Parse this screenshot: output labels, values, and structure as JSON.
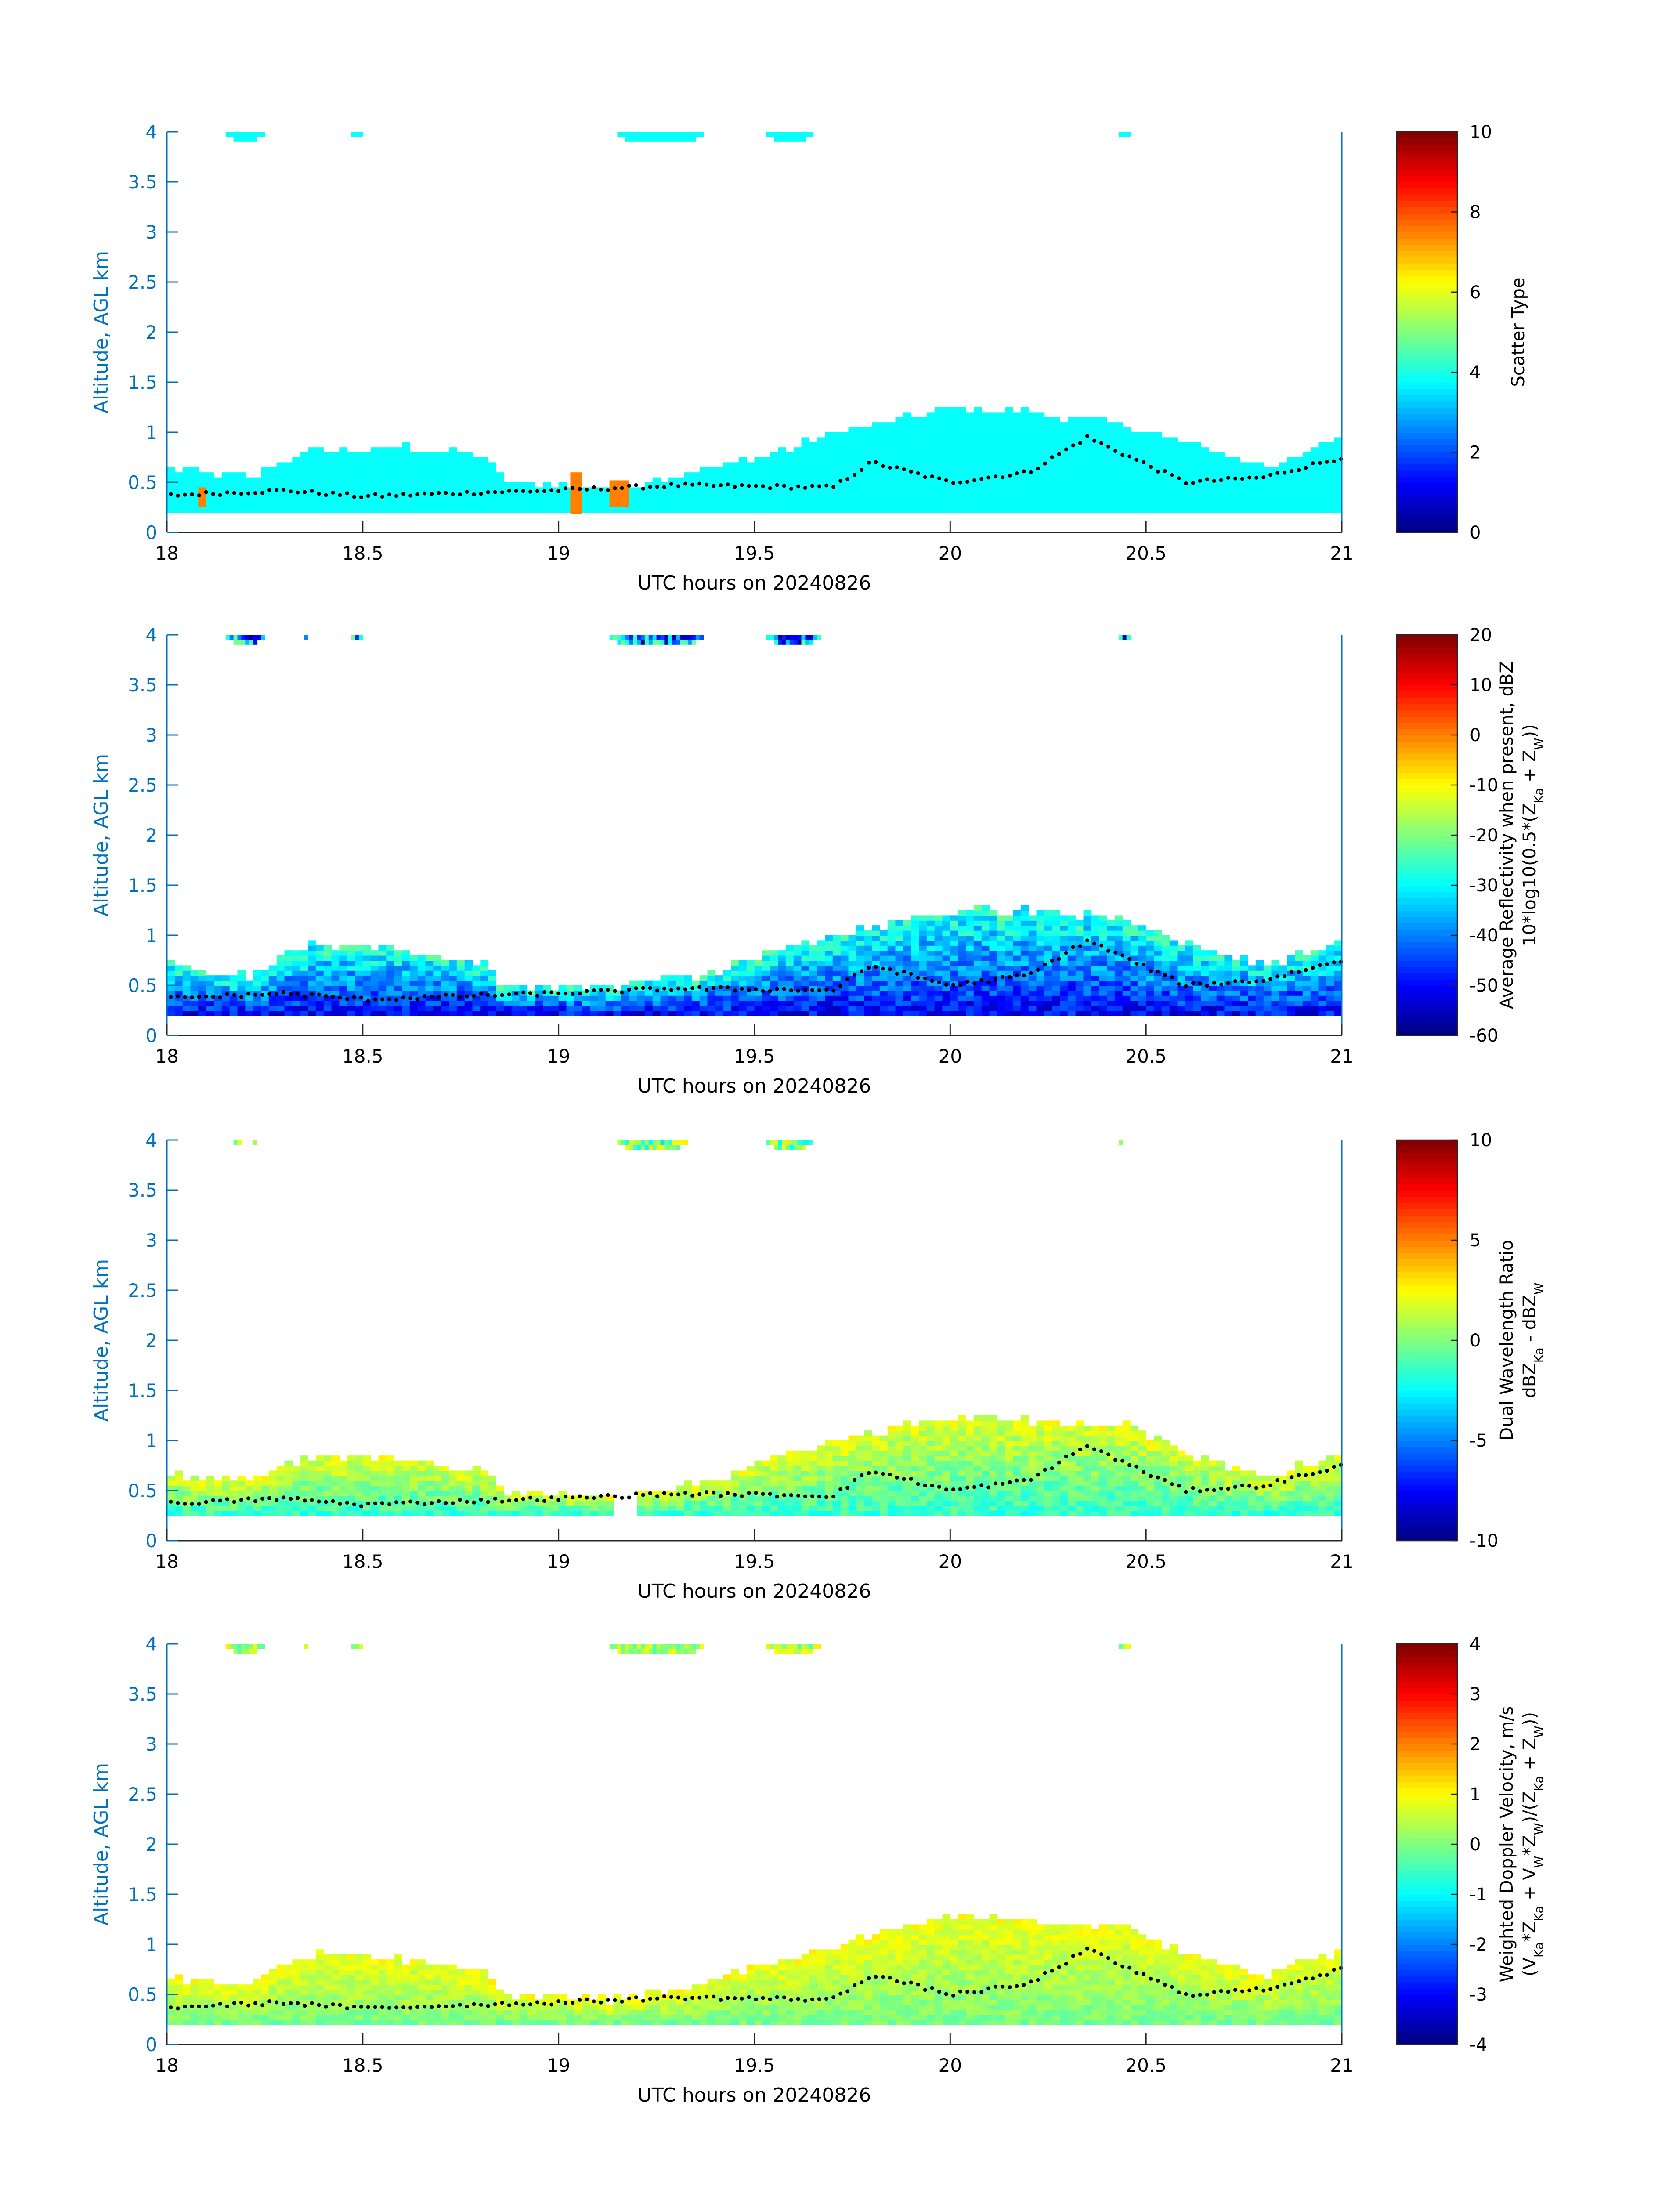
{
  "figure": {
    "background": "#ffffff",
    "axis_color": "#0072bd",
    "tick_text_color": "#000000"
  },
  "chart_data": [
    {
      "type": "heatmap",
      "title": "",
      "xlabel": "UTC hours on 20240826",
      "ylabel": "Altitude, AGL km",
      "xlim": [
        18,
        21
      ],
      "ylim": [
        0,
        4
      ],
      "xticks": [
        "18",
        "18.5",
        "19",
        "19.5",
        "20",
        "20.5",
        "21"
      ],
      "yticks": [
        "0",
        "0.5",
        "1",
        "1.5",
        "2",
        "2.5",
        "3",
        "3.5",
        "4"
      ],
      "colorbar": {
        "label_lines": [
          "Scatter Type"
        ],
        "range": [
          0,
          10
        ],
        "ticks": [
          "0",
          "2",
          "4",
          "6",
          "8",
          "10"
        ]
      },
      "low_cloud_top_km": [
        [
          18.0,
          0.65
        ],
        [
          18.2,
          0.55
        ],
        [
          18.35,
          0.8
        ],
        [
          18.6,
          0.85
        ],
        [
          18.8,
          0.75
        ],
        [
          18.85,
          0.5
        ],
        [
          19.15,
          0.45
        ],
        [
          19.4,
          0.65
        ],
        [
          19.55,
          0.8
        ],
        [
          19.7,
          1.0
        ],
        [
          20.0,
          1.25
        ],
        [
          20.2,
          1.2
        ],
        [
          20.45,
          1.05
        ],
        [
          20.6,
          0.9
        ],
        [
          20.8,
          0.65
        ],
        [
          21.0,
          0.95
        ]
      ],
      "base_km": 0.2,
      "upper_cloud_segments_h": [
        [
          18.15,
          18.25
        ],
        [
          18.47,
          18.5
        ],
        [
          19.15,
          19.37
        ],
        [
          19.53,
          19.65
        ],
        [
          20.43,
          20.46
        ]
      ],
      "dominant_value": 3.8,
      "patches": [
        {
          "x": [
            18.08,
            18.1
          ],
          "y": [
            0.25,
            0.45
          ],
          "value": 7.5
        },
        {
          "x": [
            19.03,
            19.06
          ],
          "y": [
            0.18,
            0.6
          ],
          "value": 7.5
        },
        {
          "x": [
            19.13,
            19.18
          ],
          "y": [
            0.25,
            0.52
          ],
          "value": 7.5
        }
      ],
      "dots_km": [
        [
          18.0,
          0.37
        ],
        [
          18.3,
          0.42
        ],
        [
          18.5,
          0.36
        ],
        [
          18.8,
          0.4
        ],
        [
          19.0,
          0.42
        ],
        [
          19.3,
          0.47
        ],
        [
          19.5,
          0.46
        ],
        [
          19.7,
          0.45
        ],
        [
          19.8,
          0.7
        ],
        [
          20.0,
          0.5
        ],
        [
          20.2,
          0.6
        ],
        [
          20.35,
          0.95
        ],
        [
          20.6,
          0.5
        ],
        [
          20.8,
          0.55
        ],
        [
          21.0,
          0.75
        ]
      ],
      "colormap": "jet"
    },
    {
      "type": "heatmap",
      "title": "",
      "xlabel": "UTC hours on 20240826",
      "ylabel": "Altitude, AGL km",
      "xlim": [
        18,
        21
      ],
      "ylim": [
        0,
        4
      ],
      "xticks": [
        "18",
        "18.5",
        "19",
        "19.5",
        "20",
        "20.5",
        "21"
      ],
      "yticks": [
        "0",
        "0.5",
        "1",
        "1.5",
        "2",
        "2.5",
        "3",
        "3.5",
        "4"
      ],
      "colorbar": {
        "label_lines": [
          "Average Reflectivity when present, dBZ",
          "10*log10(0.5*(Z_Ka + Z_W))"
        ],
        "range": [
          -60,
          20
        ],
        "ticks": [
          "-60",
          "-50",
          "-40",
          "-30",
          "-20",
          "-10",
          "0",
          "10",
          "20"
        ]
      },
      "low_cloud_top_km": [
        [
          18.0,
          0.7
        ],
        [
          18.2,
          0.6
        ],
        [
          18.35,
          0.9
        ],
        [
          18.6,
          0.85
        ],
        [
          18.8,
          0.75
        ],
        [
          18.85,
          0.5
        ],
        [
          19.15,
          0.5
        ],
        [
          19.4,
          0.65
        ],
        [
          19.55,
          0.85
        ],
        [
          19.7,
          1.0
        ],
        [
          20.0,
          1.25
        ],
        [
          20.2,
          1.25
        ],
        [
          20.45,
          1.15
        ],
        [
          20.6,
          0.9
        ],
        [
          20.8,
          0.7
        ],
        [
          21.0,
          0.95
        ]
      ],
      "base_km": 0.2,
      "upper_cloud_segments_h": [
        [
          18.15,
          18.25
        ],
        [
          18.35,
          18.36
        ],
        [
          18.47,
          18.5
        ],
        [
          19.13,
          19.37
        ],
        [
          19.53,
          19.67
        ],
        [
          20.43,
          20.46
        ]
      ],
      "value_range": [
        -60,
        -20
      ],
      "dots_km": [
        [
          18.0,
          0.37
        ],
        [
          18.3,
          0.42
        ],
        [
          18.5,
          0.36
        ],
        [
          18.8,
          0.4
        ],
        [
          19.0,
          0.42
        ],
        [
          19.3,
          0.47
        ],
        [
          19.5,
          0.46
        ],
        [
          19.7,
          0.45
        ],
        [
          19.8,
          0.7
        ],
        [
          20.0,
          0.5
        ],
        [
          20.2,
          0.6
        ],
        [
          20.35,
          0.95
        ],
        [
          20.6,
          0.5
        ],
        [
          20.8,
          0.55
        ],
        [
          21.0,
          0.75
        ]
      ],
      "colormap": "jet"
    },
    {
      "type": "heatmap",
      "title": "",
      "xlabel": "UTC hours on 20240826",
      "ylabel": "Altitude, AGL km",
      "xlim": [
        18,
        21
      ],
      "ylim": [
        0,
        4
      ],
      "xticks": [
        "18",
        "18.5",
        "19",
        "19.5",
        "20",
        "20.5",
        "21"
      ],
      "yticks": [
        "0",
        "0.5",
        "1",
        "1.5",
        "2",
        "2.5",
        "3",
        "3.5",
        "4"
      ],
      "colorbar": {
        "label_lines": [
          "Dual Wavelength Ratio",
          "dBZ_Ka - dBZ_W"
        ],
        "range": [
          -10,
          10
        ],
        "ticks": [
          "-10",
          "-5",
          "0",
          "5",
          "10"
        ]
      },
      "low_cloud_top_km": [
        [
          18.0,
          0.65
        ],
        [
          18.2,
          0.6
        ],
        [
          18.35,
          0.85
        ],
        [
          18.6,
          0.8
        ],
        [
          18.8,
          0.7
        ],
        [
          18.85,
          0.5
        ],
        [
          19.15,
          0.45
        ],
        [
          19.4,
          0.6
        ],
        [
          19.55,
          0.85
        ],
        [
          19.7,
          1.0
        ],
        [
          20.0,
          1.25
        ],
        [
          20.2,
          1.2
        ],
        [
          20.45,
          1.15
        ],
        [
          20.6,
          0.85
        ],
        [
          20.8,
          0.65
        ],
        [
          21.0,
          0.9
        ]
      ],
      "base_km": 0.25,
      "gap_h": [
        19.12,
        19.18
      ],
      "upper_cloud_segments_h": [
        [
          18.17,
          18.19
        ],
        [
          18.22,
          18.23
        ],
        [
          19.15,
          19.33
        ],
        [
          19.53,
          19.65
        ],
        [
          20.43,
          20.44
        ]
      ],
      "value_range": [
        -3,
        3
      ],
      "dots_km": [
        [
          18.0,
          0.37
        ],
        [
          18.3,
          0.42
        ],
        [
          18.5,
          0.36
        ],
        [
          18.8,
          0.4
        ],
        [
          19.0,
          0.42
        ],
        [
          19.3,
          0.47
        ],
        [
          19.5,
          0.46
        ],
        [
          19.7,
          0.45
        ],
        [
          19.8,
          0.7
        ],
        [
          20.0,
          0.5
        ],
        [
          20.2,
          0.6
        ],
        [
          20.35,
          0.95
        ],
        [
          20.6,
          0.5
        ],
        [
          20.8,
          0.55
        ],
        [
          21.0,
          0.75
        ]
      ],
      "colormap": "jet"
    },
    {
      "type": "heatmap",
      "title": "",
      "xlabel": "UTC hours on 20240826",
      "ylabel": "Altitude, AGL km",
      "xlim": [
        18,
        21
      ],
      "ylim": [
        0,
        4
      ],
      "xticks": [
        "18",
        "18.5",
        "19",
        "19.5",
        "20",
        "20.5",
        "21"
      ],
      "yticks": [
        "0",
        "0.5",
        "1",
        "1.5",
        "2",
        "2.5",
        "3",
        "3.5",
        "4"
      ],
      "colorbar": {
        "label_lines": [
          "Weighted Doppler Velocity, m/s",
          "(V_Ka*Z_Ka + V_W*Z_W)/(Z_Ka + Z_W))"
        ],
        "range": [
          -4,
          4
        ],
        "ticks": [
          "-4",
          "-3",
          "-2",
          "-1",
          "0",
          "1",
          "2",
          "3",
          "4"
        ]
      },
      "low_cloud_top_km": [
        [
          18.0,
          0.65
        ],
        [
          18.2,
          0.6
        ],
        [
          18.35,
          0.9
        ],
        [
          18.6,
          0.85
        ],
        [
          18.8,
          0.75
        ],
        [
          18.85,
          0.5
        ],
        [
          19.15,
          0.45
        ],
        [
          19.4,
          0.65
        ],
        [
          19.55,
          0.85
        ],
        [
          19.7,
          1.0
        ],
        [
          20.0,
          1.3
        ],
        [
          20.2,
          1.25
        ],
        [
          20.45,
          1.15
        ],
        [
          20.6,
          0.9
        ],
        [
          20.8,
          0.7
        ],
        [
          21.0,
          0.95
        ]
      ],
      "base_km": 0.2,
      "upper_cloud_segments_h": [
        [
          18.15,
          18.25
        ],
        [
          18.35,
          18.36
        ],
        [
          18.47,
          18.5
        ],
        [
          19.13,
          19.37
        ],
        [
          19.53,
          19.67
        ],
        [
          20.43,
          20.46
        ]
      ],
      "value_range": [
        -0.5,
        1.2
      ],
      "dots_km": [
        [
          18.0,
          0.37
        ],
        [
          18.3,
          0.42
        ],
        [
          18.5,
          0.36
        ],
        [
          18.8,
          0.4
        ],
        [
          19.0,
          0.42
        ],
        [
          19.3,
          0.47
        ],
        [
          19.5,
          0.46
        ],
        [
          19.7,
          0.45
        ],
        [
          19.8,
          0.7
        ],
        [
          20.0,
          0.5
        ],
        [
          20.2,
          0.6
        ],
        [
          20.35,
          0.95
        ],
        [
          20.6,
          0.5
        ],
        [
          20.8,
          0.55
        ],
        [
          21.0,
          0.75
        ]
      ],
      "colormap": "jet"
    }
  ]
}
